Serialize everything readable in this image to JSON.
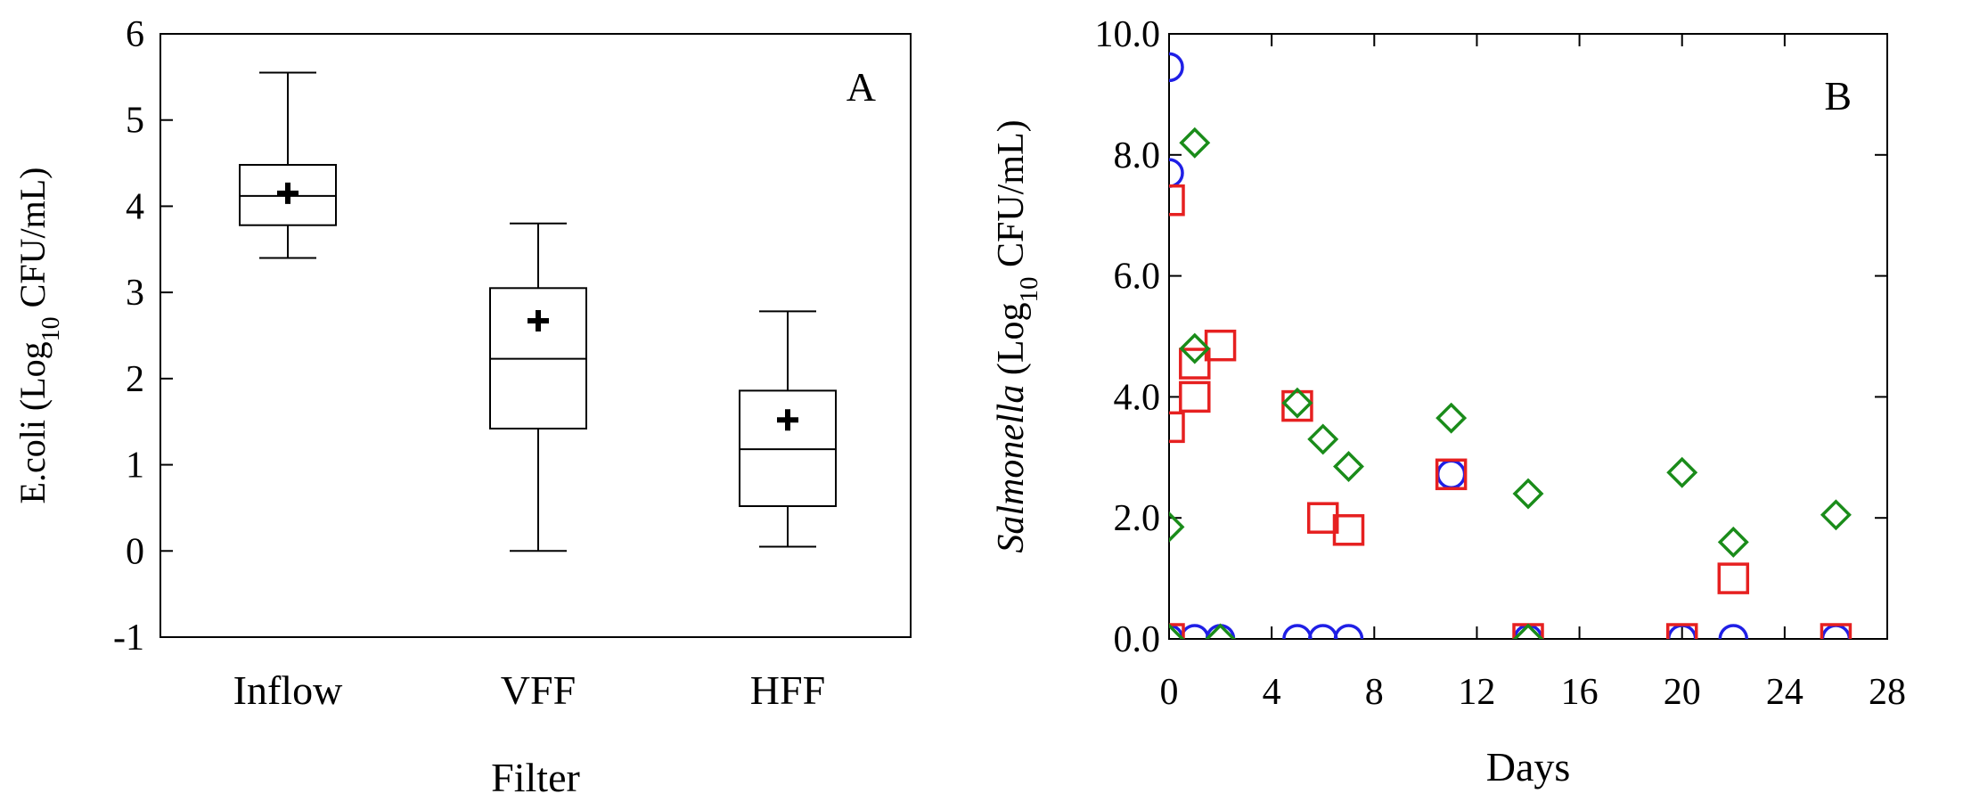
{
  "chart_data": [
    {
      "panel_label": "A",
      "type": "box",
      "xlabel": "Filter",
      "ylabel_prefix": "E.coli (Log",
      "ylabel_sub": "10",
      "ylabel_suffix": " CFU/mL)",
      "ylim": [
        -1,
        6
      ],
      "yticks": [
        "6",
        "5",
        "4",
        "3",
        "2",
        "1",
        "0",
        "-1"
      ],
      "categories": [
        "Inflow",
        "VFF",
        "HFF"
      ],
      "boxes": [
        {
          "category": "Inflow",
          "whisker_low": 3.4,
          "q1": 3.78,
          "median": 4.12,
          "q3": 4.48,
          "whisker_high": 5.55,
          "mean": 4.15
        },
        {
          "category": "VFF",
          "whisker_low": 0.0,
          "q1": 1.42,
          "median": 2.23,
          "q3": 3.05,
          "whisker_high": 3.8,
          "mean": 2.67
        },
        {
          "category": "HFF",
          "whisker_low": 0.05,
          "q1": 0.52,
          "median": 1.18,
          "q3": 1.86,
          "whisker_high": 2.78,
          "mean": 1.52
        }
      ],
      "mean_marker": "+"
    },
    {
      "panel_label": "B",
      "type": "scatter",
      "xlabel": "Days",
      "ylabel_italic": "Salmonella",
      "ylabel_prefix": " (Log",
      "ylabel_sub": "10",
      "ylabel_suffix": " CFU/mL)",
      "xlim": [
        0,
        28
      ],
      "ylim": [
        0,
        10
      ],
      "xticks": [
        "0",
        "4",
        "8",
        "12",
        "16",
        "20",
        "24",
        "28"
      ],
      "yticks": [
        "10.0",
        "8.0",
        "6.0",
        "4.0",
        "2.0",
        "0.0"
      ],
      "series": [
        {
          "marker": "circle",
          "color": "#1f1fe6",
          "points": [
            [
              0,
              9.45
            ],
            [
              0,
              7.7
            ],
            [
              0,
              0
            ],
            [
              1,
              0
            ],
            [
              2,
              0
            ],
            [
              5,
              0
            ],
            [
              6,
              0
            ],
            [
              7,
              0
            ],
            [
              11,
              2.72
            ],
            [
              14,
              0
            ],
            [
              20,
              0
            ],
            [
              22,
              0
            ],
            [
              26,
              0
            ]
          ]
        },
        {
          "marker": "square",
          "color": "#e62020",
          "points": [
            [
              0,
              7.25
            ],
            [
              0,
              3.5
            ],
            [
              0,
              0
            ],
            [
              1,
              4.55
            ],
            [
              1,
              4.0
            ],
            [
              2,
              4.85
            ],
            [
              5,
              3.85
            ],
            [
              6,
              2.0
            ],
            [
              7,
              1.8
            ],
            [
              11,
              2.72
            ],
            [
              14,
              0
            ],
            [
              20,
              0
            ],
            [
              22,
              1.0
            ],
            [
              26,
              0
            ]
          ]
        },
        {
          "marker": "diamond",
          "color": "#1a8c1a",
          "points": [
            [
              0,
              1.85
            ],
            [
              0,
              0
            ],
            [
              1,
              8.2
            ],
            [
              1,
              4.8
            ],
            [
              2,
              0
            ],
            [
              5,
              3.9
            ],
            [
              6,
              3.3
            ],
            [
              7,
              2.85
            ],
            [
              11,
              3.65
            ],
            [
              14,
              2.4
            ],
            [
              14,
              0
            ],
            [
              20,
              2.75
            ],
            [
              22,
              1.6
            ],
            [
              26,
              2.05
            ]
          ]
        }
      ]
    }
  ]
}
